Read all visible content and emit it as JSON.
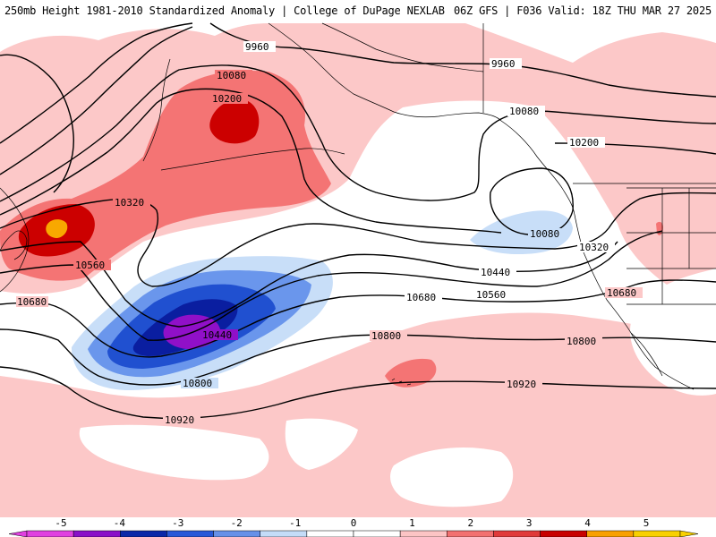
{
  "title": {
    "left": "250mb Height 1981-2010 Standardized Anomaly | College of DuPage NEXLAB",
    "right": "06Z GFS | F036 Valid: 18Z THU MAR 27 2025"
  },
  "anomaly_scale": {
    "labels": [
      "-5",
      "-4",
      "-3",
      "-2",
      "-1",
      "0",
      "1",
      "2",
      "3",
      "4",
      "5"
    ],
    "colors": [
      "#e040e0",
      "#8a10c8",
      "#0a28a8",
      "#2858d8",
      "#6690e8",
      "#c4dcf8",
      "#ffffff",
      "#ffffff",
      "#fcc4c4",
      "#f27070",
      "#e03a3a",
      "#c80000",
      "#f8a000",
      "#f8d000"
    ]
  },
  "colors": {
    "pos1": "#fcc8c8",
    "pos2": "#f47474",
    "pos3": "#cc0000",
    "pos4": "#f8a800",
    "neg1": "#c8def8",
    "neg2": "#6a96ec",
    "neg3": "#2050d0",
    "neg4": "#0a1ea0",
    "neg5": "#9010c8",
    "contour": "#000000",
    "coast": "#000000"
  },
  "contour_labels": [
    "9960",
    "9960",
    "10080",
    "10080",
    "10200",
    "10200",
    "10320",
    "10320",
    "10560",
    "10680",
    "10080",
    "10320",
    "10440",
    "10560",
    "10680",
    "10680",
    "10440",
    "10800",
    "10800",
    "10800",
    "10920",
    "10920"
  ]
}
